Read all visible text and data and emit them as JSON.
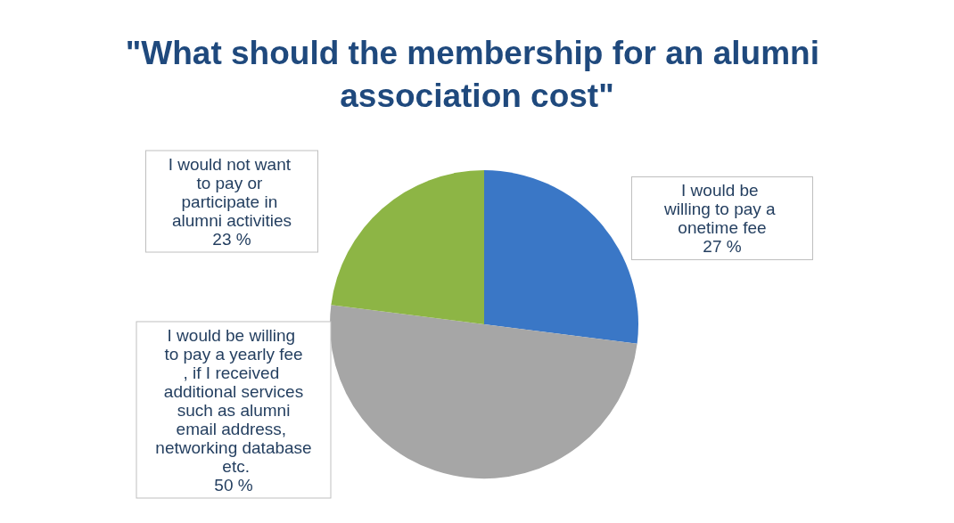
{
  "chart_data": {
    "type": "pie",
    "title": "\"What should the membership for an alumni association cost\"",
    "categories": [
      "I would be willing to pay a onetime fee",
      "I would be willing to pay a yearly fee, if I received additional services such as alumni email address, networking database etc.",
      "I would not want to pay or participate in alumni activities"
    ],
    "values": [
      27,
      50,
      23
    ],
    "value_labels": [
      "27 %",
      "50 %",
      "23 %"
    ],
    "colors": [
      "#3a77c6",
      "#a6a6a6",
      "#8db545"
    ],
    "legend": false
  }
}
